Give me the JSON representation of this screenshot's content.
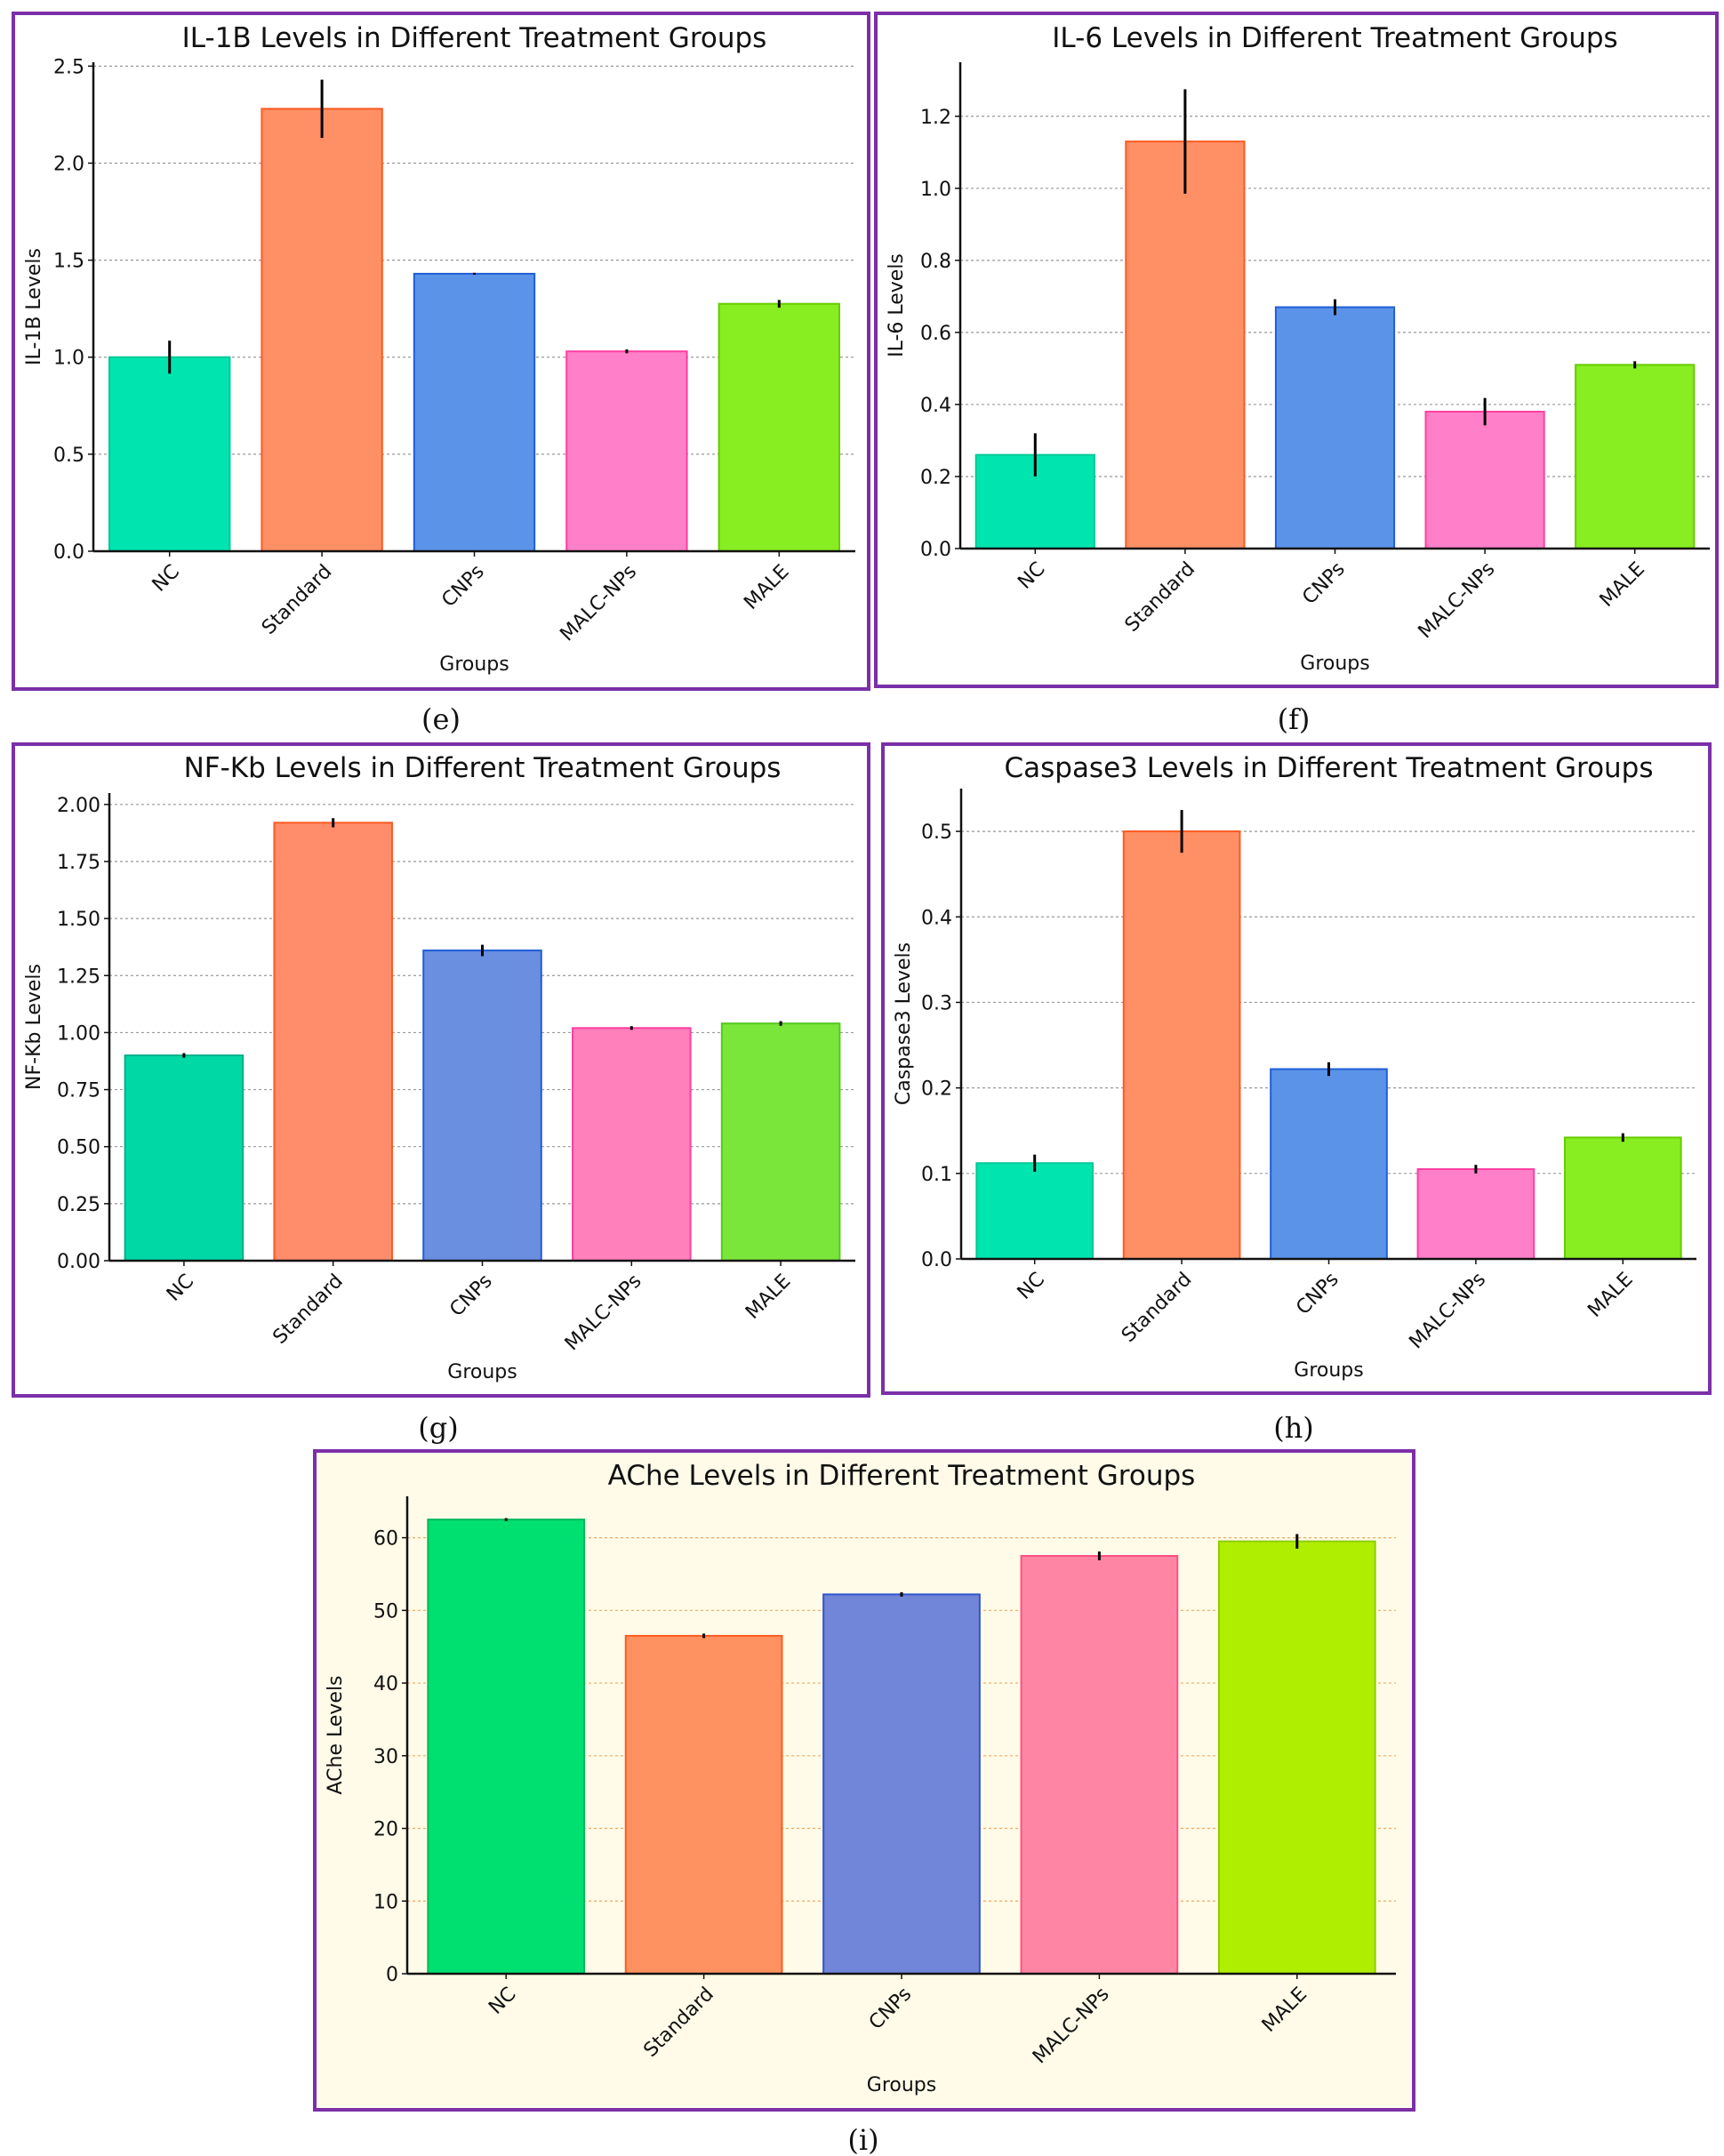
{
  "chart_data": [
    {
      "type": "bar",
      "panel_label": "(e)",
      "title": "IL-1B Levels in Different Treatment Groups",
      "xlabel": "Groups",
      "ylabel": "IL-1B Levels",
      "categories": [
        "NC",
        "Standard",
        "CNPs",
        "MALC-NPs",
        "MALE"
      ],
      "values": [
        1.0,
        2.28,
        1.43,
        1.03,
        1.275
      ],
      "errors": [
        0.085,
        0.15,
        0.005,
        0.01,
        0.02
      ],
      "yticks": [
        "0.0",
        "0.5",
        "1.0",
        "1.5",
        "2.0",
        "2.5"
      ],
      "ylim": [
        0,
        2.52
      ],
      "grid": true,
      "background": "#ffffff",
      "grid_color": "#999999",
      "colors": [
        "#00e5b0",
        "#ff9066",
        "#5b93e8",
        "#ff80c8",
        "#88ee22"
      ],
      "edge_colors": [
        "#00c896",
        "#ff5a1f",
        "#1f5fd6",
        "#ff3fa0",
        "#66cc00"
      ]
    },
    {
      "type": "bar",
      "panel_label": "(f)",
      "title": "IL-6 Levels in Different Treatment Groups",
      "xlabel": "Groups",
      "ylabel": "IL-6 Levels",
      "categories": [
        "NC",
        "Standard",
        "CNPs",
        "MALC-NPs",
        "MALE"
      ],
      "values": [
        0.26,
        1.13,
        0.67,
        0.38,
        0.51
      ],
      "errors": [
        0.06,
        0.145,
        0.022,
        0.038,
        0.01
      ],
      "yticks": [
        "0.0",
        "0.2",
        "0.4",
        "0.6",
        "0.8",
        "1.0",
        "1.2"
      ],
      "ylim": [
        0,
        1.35
      ],
      "grid": true,
      "background": "#ffffff",
      "grid_color": "#999999",
      "colors": [
        "#00e5b0",
        "#ff9066",
        "#5b93e8",
        "#ff80c8",
        "#88ee22"
      ],
      "edge_colors": [
        "#00c896",
        "#ff5a1f",
        "#1f5fd6",
        "#ff3fa0",
        "#66cc00"
      ]
    },
    {
      "type": "bar",
      "panel_label": "(g)",
      "title": "NF-Kb Levels in Different Treatment Groups",
      "xlabel": "Groups",
      "ylabel": "NF-Kb Levels",
      "categories": [
        "NC",
        "Standard",
        "CNPs",
        "MALC-NPs",
        "MALE"
      ],
      "values": [
        0.9,
        1.92,
        1.36,
        1.02,
        1.04
      ],
      "errors": [
        0.01,
        0.02,
        0.025,
        0.008,
        0.01
      ],
      "yticks": [
        "0.00",
        "0.25",
        "0.50",
        "0.75",
        "1.00",
        "1.25",
        "1.50",
        "1.75",
        "2.00"
      ],
      "ylim": [
        0,
        2.05
      ],
      "grid": true,
      "background": "#ffffff",
      "grid_color": "#999999",
      "colors": [
        "#00d9a5",
        "#ff8c6a",
        "#6a8fe0",
        "#ff80bb",
        "#7ae63a"
      ],
      "edge_colors": [
        "#00b088",
        "#ff5a1f",
        "#1f5fd6",
        "#ff3fa0",
        "#55c820"
      ]
    },
    {
      "type": "bar",
      "panel_label": "(h)",
      "title": "Caspase3 Levels in Different Treatment Groups",
      "xlabel": "Groups",
      "ylabel": "Caspase3 Levels",
      "categories": [
        "NC",
        "Standard",
        "CNPs",
        "MALC-NPs",
        "MALE"
      ],
      "values": [
        0.112,
        0.5,
        0.222,
        0.105,
        0.142
      ],
      "errors": [
        0.01,
        0.025,
        0.008,
        0.005,
        0.005
      ],
      "yticks": [
        "0.0",
        "0.1",
        "0.2",
        "0.3",
        "0.4",
        "0.5"
      ],
      "ylim": [
        0,
        0.55
      ],
      "grid": true,
      "background": "#ffffff",
      "grid_color": "#999999",
      "colors": [
        "#00e5b0",
        "#ff9066",
        "#5b93e8",
        "#ff80c8",
        "#88ee22"
      ],
      "edge_colors": [
        "#00c896",
        "#ff5a1f",
        "#1f5fd6",
        "#ff3fa0",
        "#66cc00"
      ]
    },
    {
      "type": "bar",
      "panel_label": "(i)",
      "title": "AChe Levels in Different Treatment Groups",
      "xlabel": "Groups",
      "ylabel": "AChe Levels",
      "categories": [
        "NC",
        "Standard",
        "CNPs",
        "MALC-NPs",
        "MALE"
      ],
      "values": [
        62.5,
        46.5,
        52.2,
        57.5,
        59.5
      ],
      "errors": [
        0.2,
        0.3,
        0.3,
        0.6,
        1.0
      ],
      "yticks": [
        "0",
        "10",
        "20",
        "30",
        "40",
        "50",
        "60"
      ],
      "ylim": [
        0,
        65.7
      ],
      "grid": true,
      "background": "#fffbe8",
      "grid_color": "#f0a860",
      "colors": [
        "#00e070",
        "#ff9260",
        "#7186d8",
        "#ff85a5",
        "#b0ee00"
      ],
      "edge_colors": [
        "#00b85a",
        "#ff5a1f",
        "#2f55c8",
        "#ff5080",
        "#90cc00"
      ]
    }
  ],
  "frame_color": "#7b2fa8"
}
